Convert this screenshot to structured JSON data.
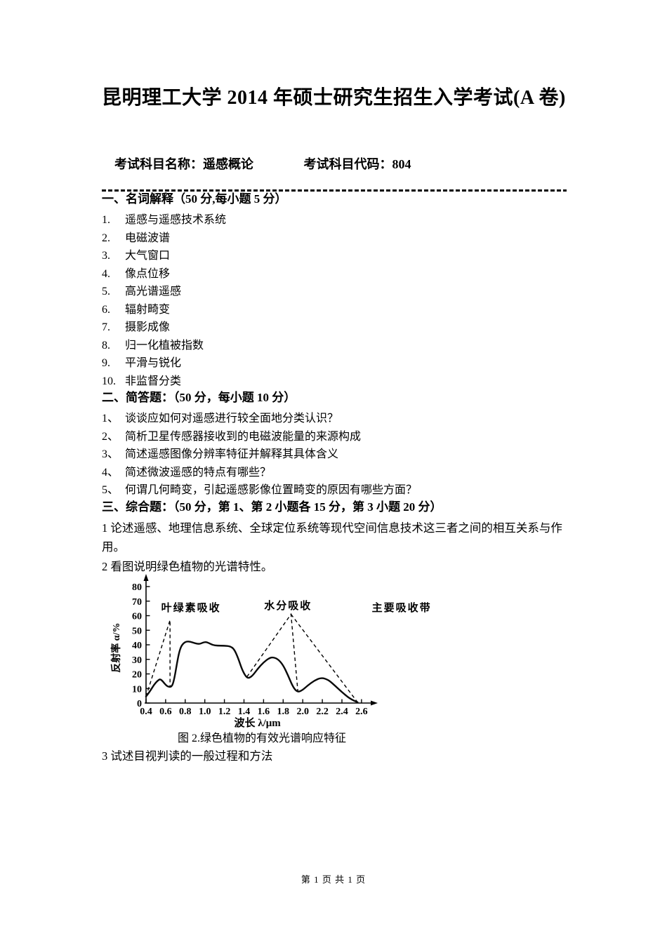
{
  "page": {
    "title": "昆明理工大学 2014 年硕士研究生招生入学考试(A 卷)",
    "subject_name_label": "考试科目名称：遥感概论",
    "subject_code_label": "考试科目代码：804",
    "footer": "第 1 页 共 1 页"
  },
  "sections": {
    "s1": {
      "heading": "一、名词解释（50 分,每小题 5 分）",
      "items": [
        {
          "num": "1.",
          "text": "遥感与遥感技术系统"
        },
        {
          "num": "2.",
          "text": "电磁波谱"
        },
        {
          "num": "3.",
          "text": "大气窗口"
        },
        {
          "num": "4.",
          "text": "像点位移"
        },
        {
          "num": "5.",
          "text": "高光谱遥感"
        },
        {
          "num": "6.",
          "text": "辐射畸变"
        },
        {
          "num": "7.",
          "text": "摄影成像"
        },
        {
          "num": "8.",
          "text": "归一化植被指数"
        },
        {
          "num": "9.",
          "text": "平滑与锐化"
        },
        {
          "num": "10.",
          "text": "非监督分类"
        }
      ]
    },
    "s2": {
      "heading": "二、简答题：（50 分，每小题 10 分）",
      "items": [
        {
          "num": "1、",
          "text": "谈谈应如何对遥感进行较全面地分类认识？"
        },
        {
          "num": "2、",
          "text": "简析卫星传感器接收到的电磁波能量的来源构成"
        },
        {
          "num": "3、",
          "text": "简述遥感图像分辨率特征并解释其具体含义"
        },
        {
          "num": "4、",
          "text": "简述微波遥感的特点有哪些？"
        },
        {
          "num": "5、",
          "text": "何谓几何畸变，引起遥感影像位置畸变的原因有哪些方面？"
        }
      ]
    },
    "s3": {
      "heading": "三、综合题：（50 分，第 1、第 2 小题各 15 分，第 3 小题 20 分）",
      "item1": "1 论述遥感、地理信息系统、全球定位系统等现代空间信息技术这三者之间的相互关系与作用。",
      "item2": "2 看图说明绿色植物的光谱特性。",
      "item3": "3  试述目视判读的一般过程和方法",
      "figure_caption": "图 2.绿色植物的有效光谱响应特征"
    }
  },
  "chart_data": {
    "type": "line",
    "title": "图 2.绿色植物的有效光谱响应特征",
    "xlabel": "波长 λ/μm",
    "ylabel": "反射率 α/%",
    "xlim": [
      0.4,
      2.6
    ],
    "ylim": [
      0,
      80
    ],
    "x_ticks": [
      0.4,
      0.6,
      0.8,
      1.0,
      1.2,
      1.4,
      1.6,
      1.8,
      2.0,
      2.2,
      2.4,
      2.6
    ],
    "y_ticks": [
      0,
      10,
      20,
      30,
      40,
      50,
      60,
      70,
      80
    ],
    "grid": false,
    "series": [
      {
        "name": "绿色植物反射率曲线",
        "style": "solid",
        "points": [
          [
            0.4,
            4.5
          ],
          [
            0.44,
            8
          ],
          [
            0.48,
            12.5
          ],
          [
            0.52,
            15.5
          ],
          [
            0.545,
            16.5
          ],
          [
            0.57,
            15
          ],
          [
            0.6,
            12.5
          ],
          [
            0.625,
            11.2
          ],
          [
            0.655,
            11
          ],
          [
            0.675,
            13
          ],
          [
            0.695,
            19
          ],
          [
            0.715,
            27
          ],
          [
            0.735,
            34
          ],
          [
            0.755,
            38.5
          ],
          [
            0.78,
            41
          ],
          [
            0.81,
            42.3
          ],
          [
            0.85,
            42.2
          ],
          [
            0.9,
            41
          ],
          [
            0.945,
            40.5
          ],
          [
            0.98,
            41.5
          ],
          [
            1.01,
            42
          ],
          [
            1.04,
            41.3
          ],
          [
            1.08,
            39.8
          ],
          [
            1.13,
            39.4
          ],
          [
            1.2,
            39.4
          ],
          [
            1.26,
            39
          ],
          [
            1.3,
            37
          ],
          [
            1.34,
            31
          ],
          [
            1.38,
            23
          ],
          [
            1.42,
            18
          ],
          [
            1.45,
            17
          ],
          [
            1.49,
            19
          ],
          [
            1.54,
            23.5
          ],
          [
            1.6,
            28
          ],
          [
            1.66,
            31
          ],
          [
            1.7,
            31.5
          ],
          [
            1.75,
            30
          ],
          [
            1.8,
            26
          ],
          [
            1.85,
            19
          ],
          [
            1.9,
            11
          ],
          [
            1.945,
            7.5
          ],
          [
            1.99,
            8.5
          ],
          [
            2.05,
            12
          ],
          [
            2.12,
            15.5
          ],
          [
            2.19,
            17.5
          ],
          [
            2.26,
            16
          ],
          [
            2.32,
            12.5
          ],
          [
            2.4,
            7.5
          ],
          [
            2.48,
            3
          ],
          [
            2.56,
            0.5
          ]
        ]
      }
    ],
    "guides": [
      {
        "name": "叶绿素吸收指示虚线",
        "points": [
          [
            0.4,
            4.5
          ],
          [
            0.645,
            57
          ],
          [
            0.645,
            11.5
          ]
        ]
      },
      {
        "name": "水分吸收指示虚线",
        "points": [
          [
            1.43,
            18
          ],
          [
            1.88,
            61
          ],
          [
            1.95,
            8
          ]
        ]
      },
      {
        "name": "水分吸收右侧指示虚线",
        "points": [
          [
            1.88,
            61
          ],
          [
            2.56,
            0.5
          ]
        ]
      }
    ],
    "annotations": [
      {
        "text": "叶绿素吸收",
        "x": 0.86,
        "y": 65.5
      },
      {
        "text": "水分吸收",
        "x": 1.85,
        "y": 67
      },
      {
        "text": "主要吸收带",
        "x": 3.01,
        "y": 65.5
      }
    ]
  }
}
